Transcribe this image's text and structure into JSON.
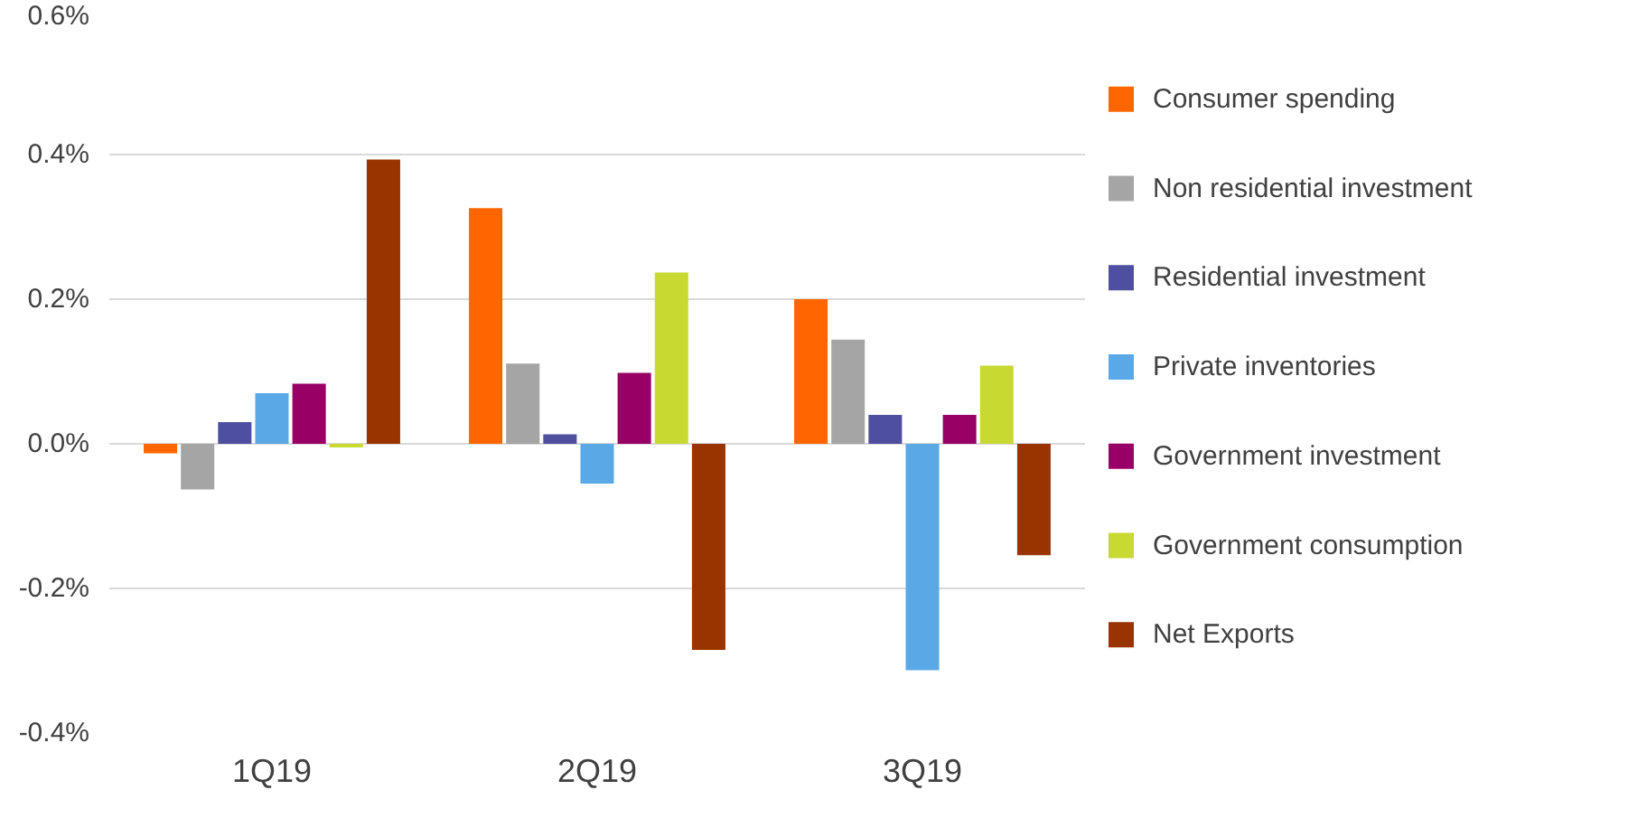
{
  "chart_data": {
    "type": "bar",
    "categories": [
      "1Q19",
      "2Q19",
      "3Q19"
    ],
    "series": [
      {
        "name": "Consumer spending",
        "color": "#ff6600",
        "values": [
          -0.013,
          0.326,
          0.2
        ]
      },
      {
        "name": "Non residential investment",
        "color": "#a5a5a5",
        "values": [
          -0.063,
          0.111,
          0.144
        ]
      },
      {
        "name": "Residential investment",
        "color": "#4f4f9f",
        "values": [
          0.03,
          0.013,
          0.04
        ]
      },
      {
        "name": "Private inventories",
        "color": "#5aa9e6",
        "values": [
          0.07,
          -0.055,
          -0.313
        ]
      },
      {
        "name": "Government investment",
        "color": "#990066",
        "values": [
          0.083,
          0.098,
          0.04
        ]
      },
      {
        "name": "Government consumption",
        "color": "#c8d932",
        "values": [
          -0.005,
          0.237,
          0.108
        ]
      },
      {
        "name": "Net Exports",
        "color": "#993300",
        "values": [
          0.393,
          -0.285,
          -0.154
        ]
      }
    ],
    "ylim": [
      -0.4,
      0.6
    ],
    "yticks": [
      {
        "value": -0.4,
        "label": "-0.4%"
      },
      {
        "value": -0.2,
        "label": "-0.2%"
      },
      {
        "value": 0,
        "label": "0.0%"
      },
      {
        "value": 0.2,
        "label": "0.2%"
      },
      {
        "value": 0.4,
        "label": "0.4%"
      },
      {
        "value": 0.6,
        "label": "0.6%"
      }
    ],
    "grid": "y",
    "legend": "right"
  }
}
